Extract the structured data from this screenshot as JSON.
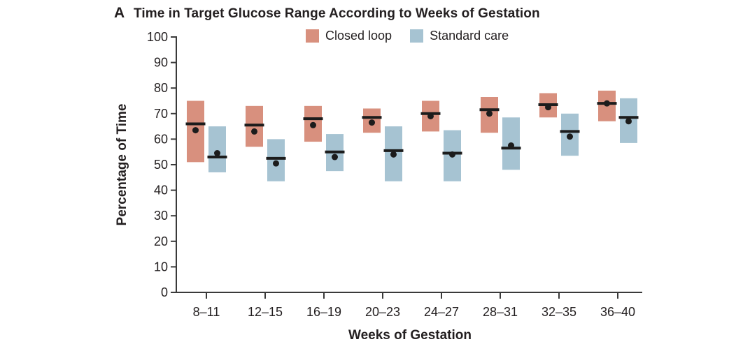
{
  "panel_label": "A",
  "title": "Time in Target Glucose Range According to Weeks of Gestation",
  "y_axis": {
    "label": "Percentage of Time",
    "ticks": [
      0,
      10,
      20,
      30,
      40,
      50,
      60,
      70,
      80,
      90,
      100
    ]
  },
  "x_axis": {
    "label": "Weeks of Gestation"
  },
  "colors": {
    "closed_loop": "#D8907E",
    "standard_care": "#A6C3D2",
    "axis": "#3a3a3a",
    "mark": "#1c1c1c"
  },
  "chart_data": {
    "type": "box",
    "title": "Time in Target Glucose Range According to Weeks of Gestation",
    "xlabel": "Weeks of Gestation",
    "ylabel": "Percentage of Time",
    "ylim": [
      0,
      100
    ],
    "grid": false,
    "legend_position": "top",
    "categories": [
      "8–11",
      "12–15",
      "16–19",
      "20–23",
      "24–27",
      "28–31",
      "32–35",
      "36–40"
    ],
    "series": [
      {
        "name": "Closed loop",
        "color": "#D8907E",
        "boxes": [
          {
            "low": 51,
            "high": 75,
            "median": 66,
            "mean": 63.5
          },
          {
            "low": 57,
            "high": 73,
            "median": 65.5,
            "mean": 63
          },
          {
            "low": 59,
            "high": 73,
            "median": 68,
            "mean": 65.5
          },
          {
            "low": 62.5,
            "high": 72,
            "median": 68.5,
            "mean": 66.5
          },
          {
            "low": 63,
            "high": 75,
            "median": 70,
            "mean": 69
          },
          {
            "low": 62.5,
            "high": 76.5,
            "median": 71.5,
            "mean": 70
          },
          {
            "low": 68.5,
            "high": 78,
            "median": 73.5,
            "mean": 72.5
          },
          {
            "low": 67,
            "high": 79,
            "median": 74,
            "mean": 74
          }
        ]
      },
      {
        "name": "Standard care",
        "color": "#A6C3D2",
        "boxes": [
          {
            "low": 47,
            "high": 65,
            "median": 53,
            "mean": 54.5
          },
          {
            "low": 43.5,
            "high": 60,
            "median": 52.5,
            "mean": 50.5
          },
          {
            "low": 47.5,
            "high": 62,
            "median": 55,
            "mean": 53
          },
          {
            "low": 43.5,
            "high": 65,
            "median": 55.5,
            "mean": 54
          },
          {
            "low": 43.5,
            "high": 63.5,
            "median": 54.5,
            "mean": 54
          },
          {
            "low": 48,
            "high": 68.5,
            "median": 56.5,
            "mean": 57.5
          },
          {
            "low": 53.5,
            "high": 70,
            "median": 63,
            "mean": 61
          },
          {
            "low": 58.5,
            "high": 76,
            "median": 68.5,
            "mean": 67
          }
        ]
      }
    ]
  }
}
